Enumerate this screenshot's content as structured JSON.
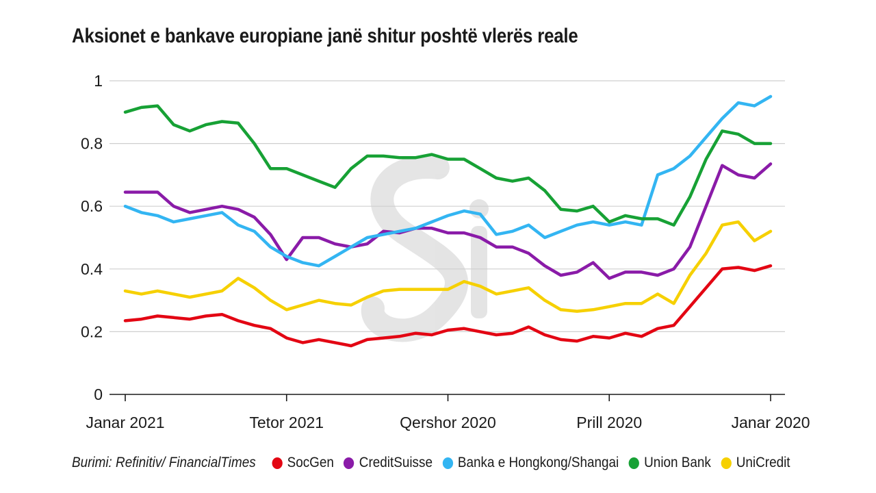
{
  "chart_data": {
    "type": "line",
    "title": "Aksionet e bankave europiane janë shitur poshtë vlerës reale",
    "source": "Burimi: Refinitiv/ FinancialTimes",
    "x_labels": [
      "Janar 2021",
      "Tetor 2021",
      "Qershor 2020",
      "Prill 2020",
      "Janar 2020"
    ],
    "x_label_positions": [
      0,
      100,
      200,
      300,
      400
    ],
    "xlim": [
      0,
      400
    ],
    "y_ticks": [
      0,
      0.2,
      0.4,
      0.6,
      0.8,
      1
    ],
    "y_tick_labels": [
      "0",
      "0.2",
      "0.4",
      "0.6",
      "0.8",
      "1"
    ],
    "ylim": [
      0,
      1
    ],
    "grid": true,
    "x": [
      0,
      10,
      20,
      30,
      40,
      50,
      60,
      70,
      80,
      90,
      100,
      110,
      120,
      130,
      140,
      150,
      160,
      170,
      180,
      190,
      200,
      210,
      220,
      230,
      240,
      250,
      260,
      270,
      280,
      290,
      300,
      310,
      320,
      330,
      340,
      350,
      360,
      370,
      380,
      390,
      400
    ],
    "series": [
      {
        "name": "SocGen",
        "color": "#e30613",
        "values": [
          0.235,
          0.24,
          0.25,
          0.245,
          0.24,
          0.25,
          0.255,
          0.235,
          0.22,
          0.21,
          0.18,
          0.165,
          0.175,
          0.165,
          0.155,
          0.175,
          0.18,
          0.185,
          0.195,
          0.19,
          0.205,
          0.21,
          0.2,
          0.19,
          0.195,
          0.215,
          0.19,
          0.175,
          0.17,
          0.185,
          0.18,
          0.195,
          0.185,
          0.21,
          0.22,
          0.28,
          0.34,
          0.4,
          0.405,
          0.395,
          0.41
        ]
      },
      {
        "name": "CreditSuisse",
        "color": "#8a1ba8",
        "values": [
          0.645,
          0.645,
          0.645,
          0.6,
          0.58,
          0.59,
          0.6,
          0.59,
          0.565,
          0.51,
          0.43,
          0.5,
          0.5,
          0.48,
          0.47,
          0.48,
          0.52,
          0.515,
          0.53,
          0.53,
          0.515,
          0.515,
          0.5,
          0.47,
          0.47,
          0.45,
          0.41,
          0.38,
          0.39,
          0.42,
          0.37,
          0.39,
          0.39,
          0.38,
          0.4,
          0.47,
          0.6,
          0.73,
          0.7,
          0.69,
          0.735
        ]
      },
      {
        "name": "Banka e Hongkong/Shangai",
        "color": "#33b5f2",
        "values": [
          0.6,
          0.58,
          0.57,
          0.55,
          0.56,
          0.57,
          0.58,
          0.54,
          0.52,
          0.47,
          0.44,
          0.42,
          0.41,
          0.44,
          0.47,
          0.5,
          0.51,
          0.52,
          0.53,
          0.55,
          0.57,
          0.585,
          0.575,
          0.51,
          0.52,
          0.54,
          0.5,
          0.52,
          0.54,
          0.55,
          0.54,
          0.55,
          0.54,
          0.7,
          0.72,
          0.76,
          0.82,
          0.88,
          0.93,
          0.92,
          0.95
        ]
      },
      {
        "name": "Union Bank",
        "color": "#17a135",
        "values": [
          0.9,
          0.915,
          0.92,
          0.86,
          0.84,
          0.86,
          0.87,
          0.865,
          0.8,
          0.72,
          0.72,
          0.7,
          0.68,
          0.66,
          0.72,
          0.76,
          0.76,
          0.755,
          0.755,
          0.765,
          0.75,
          0.75,
          0.72,
          0.69,
          0.68,
          0.69,
          0.65,
          0.59,
          0.585,
          0.6,
          0.55,
          0.57,
          0.56,
          0.56,
          0.54,
          0.63,
          0.75,
          0.84,
          0.83,
          0.8,
          0.8
        ]
      },
      {
        "name": "UniCredit",
        "color": "#f6d000",
        "values": [
          0.33,
          0.32,
          0.33,
          0.32,
          0.31,
          0.32,
          0.33,
          0.37,
          0.34,
          0.3,
          0.27,
          0.285,
          0.3,
          0.29,
          0.285,
          0.31,
          0.33,
          0.335,
          0.335,
          0.335,
          0.335,
          0.36,
          0.345,
          0.32,
          0.33,
          0.34,
          0.3,
          0.27,
          0.265,
          0.27,
          0.28,
          0.29,
          0.29,
          0.32,
          0.29,
          0.38,
          0.45,
          0.54,
          0.55,
          0.49,
          0.52
        ]
      }
    ]
  },
  "legend": {
    "source": "Burimi: Refinitiv/ FinancialTimes",
    "items": [
      {
        "label": "SocGen",
        "color": "#e30613"
      },
      {
        "label": "CreditSuisse",
        "color": "#8a1ba8"
      },
      {
        "label": "Banka e Hongkong/Shangai",
        "color": "#33b5f2"
      },
      {
        "label": "Union Bank",
        "color": "#17a135"
      },
      {
        "label": "UniCredit",
        "color": "#f6d000"
      }
    ]
  }
}
